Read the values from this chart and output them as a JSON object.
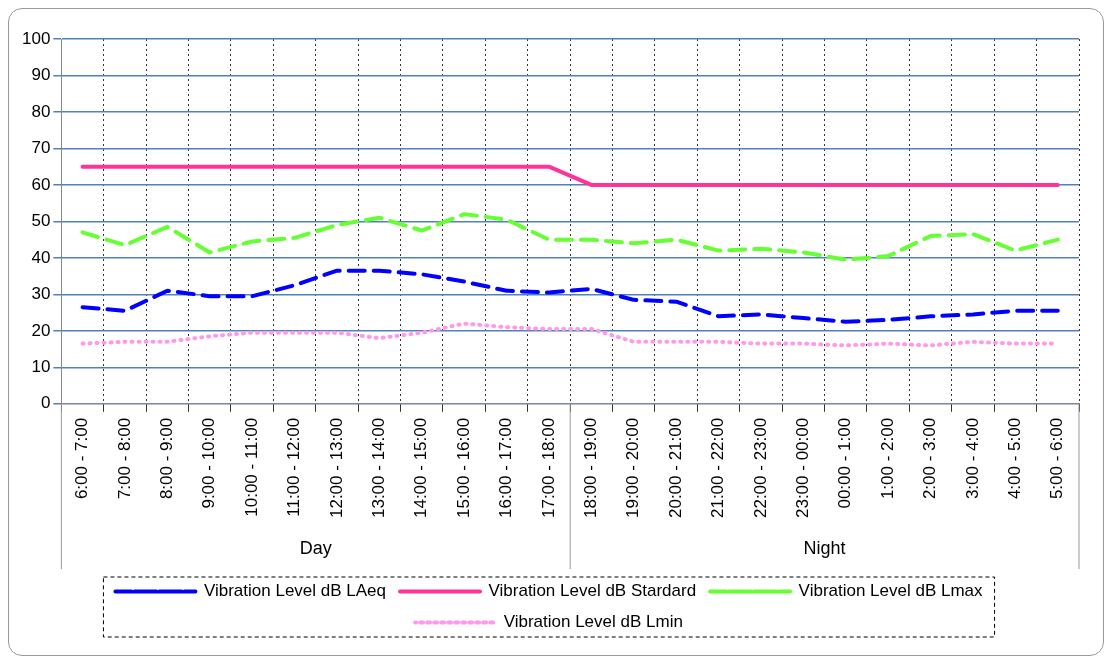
{
  "chart_data": {
    "type": "line",
    "categories": [
      "6:00 - 7:00",
      "7:00 - 8:00",
      "8:00 - 9:00",
      "9:00 - 10:00",
      "10:00 - 11:00",
      "11:00 - 12:00",
      "12:00 - 13:00",
      "13:00 - 14:00",
      "14:00 - 15:00",
      "15:00 - 16:00",
      "16:00 - 17:00",
      "17:00 - 18:00",
      "18:00 - 19:00",
      "19:00 - 20:00",
      "20:00 - 21:00",
      "21:00 - 22:00",
      "22:00 - 23:00",
      "23:00 - 00:00",
      "00:00 - 1:00",
      "1:00 - 2:00",
      "2:00 - 3:00",
      "3:00 - 4:00",
      "4:00 - 5:00",
      "5:00 - 6:00"
    ],
    "series": [
      {
        "name": "Vibration Level dB LAeq",
        "color": "#0000ff",
        "line_style": "dashed",
        "values": [
          26.5,
          25.5,
          31,
          29.5,
          29.5,
          32.5,
          36.5,
          36.5,
          35.5,
          33.5,
          31,
          30.5,
          31.5,
          28.5,
          28,
          24,
          24.5,
          23.5,
          22.5,
          23,
          24,
          24.5,
          25.5,
          25.5
        ]
      },
      {
        "name": "Vibration Level dB Stardard",
        "color": "#ff3399",
        "line_style": "solid",
        "values": [
          65,
          65,
          65,
          65,
          65,
          65,
          65,
          65,
          65,
          65,
          65,
          65,
          60,
          60,
          60,
          60,
          60,
          60,
          60,
          60,
          60,
          60,
          60,
          60
        ]
      },
      {
        "name": "Vibration Level dB Lmax",
        "color": "#66ff33",
        "line_style": "dashed",
        "values": [
          47,
          43.5,
          48.5,
          41.5,
          44.5,
          45.5,
          49,
          51,
          47.5,
          52,
          50.5,
          45,
          45,
          44,
          45,
          42,
          42.5,
          41.5,
          39.5,
          40.5,
          46,
          46.5,
          42,
          45
        ]
      },
      {
        "name": "Vibration Level dB Lmin",
        "color": "#ff99ee",
        "line_style": "dotted",
        "values": [
          16.5,
          17,
          17,
          18.5,
          19.5,
          19.5,
          19.5,
          18,
          19.5,
          22,
          21,
          20.5,
          20.5,
          17,
          17,
          17,
          16.5,
          16.5,
          16,
          16.5,
          16,
          17,
          16.5,
          16.5
        ]
      }
    ],
    "ylim": [
      0,
      100
    ],
    "yticks": [
      0,
      10,
      20,
      30,
      40,
      50,
      60,
      70,
      80,
      90,
      100
    ],
    "grid": true,
    "legend": "bottom",
    "marker": "none",
    "annotations": [
      "Day",
      "Night"
    ]
  }
}
